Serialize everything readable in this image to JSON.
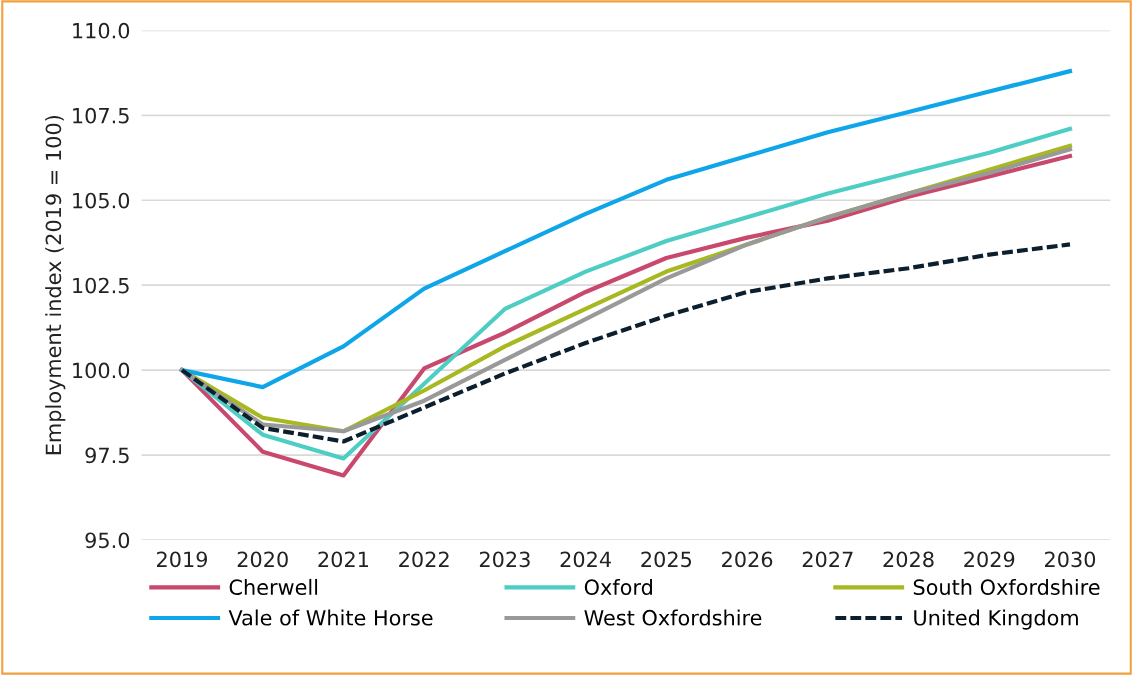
{
  "chart_data": {
    "type": "line",
    "ylabel": "Employment index (2019 = 100)",
    "categories": [
      "2019",
      "2020",
      "2021",
      "2022",
      "2023",
      "2024",
      "2025",
      "2026",
      "2027",
      "2028",
      "2029",
      "2030"
    ],
    "ylim": [
      95,
      110
    ],
    "yticks": [
      {
        "value": 95,
        "label": "95.0"
      },
      {
        "value": 97.5,
        "label": "97.5"
      },
      {
        "value": 100,
        "label": "100.0"
      },
      {
        "value": 102.5,
        "label": "102.5"
      },
      {
        "value": 105,
        "label": "105.0"
      },
      {
        "value": 107.5,
        "label": "107.5"
      },
      {
        "value": 110,
        "label": "110.0"
      }
    ],
    "grid": "y",
    "legend": "bottom",
    "marker": "none",
    "series": [
      {
        "name": "Cherwell",
        "color": "#c8486e",
        "values": [
          100,
          97.6,
          96.9,
          100.05,
          101.1,
          102.3,
          103.3,
          103.9,
          104.4,
          105.1,
          105.7,
          106.3
        ]
      },
      {
        "name": "Oxford",
        "color": "#4ecdc4",
        "values": [
          100,
          98.1,
          97.4,
          99.6,
          101.8,
          102.9,
          103.8,
          104.5,
          105.2,
          105.8,
          106.4,
          107.1
        ]
      },
      {
        "name": "South Oxfordshire",
        "color": "#a8b820",
        "values": [
          100,
          98.6,
          98.2,
          99.4,
          100.7,
          101.8,
          102.9,
          103.7,
          104.5,
          105.2,
          105.9,
          106.6
        ]
      },
      {
        "name": "Vale of White Horse",
        "color": "#0ea5e9",
        "values": [
          100,
          99.5,
          100.7,
          102.4,
          103.5,
          104.6,
          105.6,
          106.3,
          107.0,
          107.6,
          108.2,
          108.8
        ]
      },
      {
        "name": "West Oxfordshire",
        "color": "#999999",
        "values": [
          100,
          98.4,
          98.2,
          99.1,
          100.3,
          101.5,
          102.7,
          103.7,
          104.5,
          105.2,
          105.8,
          106.5
        ]
      },
      {
        "name": "United Kingdom",
        "color": "#0d1f2d",
        "line_style": "dashed",
        "values": [
          100,
          98.3,
          97.9,
          98.9,
          99.9,
          100.8,
          101.6,
          102.3,
          102.7,
          103.0,
          103.4,
          103.7
        ]
      }
    ]
  }
}
